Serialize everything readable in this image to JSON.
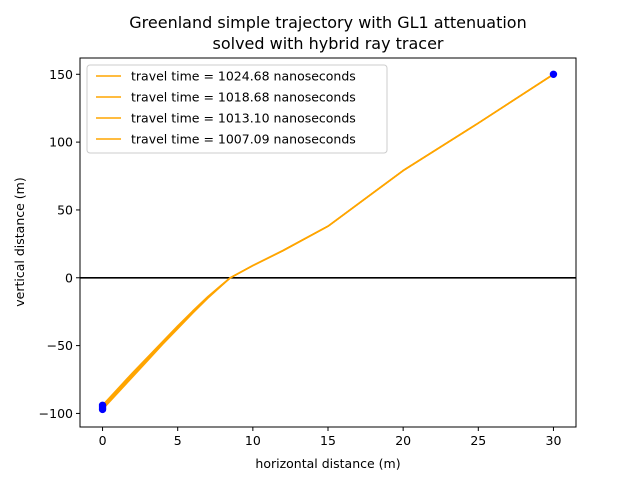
{
  "chart_data": {
    "type": "line",
    "title": [
      "Greenland simple trajectory with GL1 attenuation",
      "solved with hybrid ray tracer"
    ],
    "xlabel": "horizontal distance (m)",
    "ylabel": "vertical distance (m)",
    "xlim": [
      -1.5,
      31.5
    ],
    "ylim": [
      -110,
      162
    ],
    "xticks": [
      0,
      5,
      10,
      15,
      20,
      25,
      30
    ],
    "yticks": [
      -100,
      -50,
      0,
      50,
      100,
      150
    ],
    "grid": false,
    "legend_position": "upper-left",
    "horizontal_line": {
      "y": 0,
      "color": "#000000"
    },
    "series": [
      {
        "name": "travel time = 1024.68 nanoseconds",
        "color": "#ffa500",
        "x": [
          0,
          1,
          2,
          3,
          4,
          5,
          6,
          7,
          7.8,
          8.5,
          10,
          12,
          15,
          20,
          25,
          30
        ],
        "y": [
          -97,
          -85,
          -73,
          -61,
          -49,
          -37.5,
          -26,
          -15,
          -7,
          0,
          9,
          20,
          38,
          79,
          114,
          150
        ]
      },
      {
        "name": "travel time = 1018.68 nanoseconds",
        "color": "#ffa500",
        "x": [
          0,
          1,
          2,
          3,
          4,
          5,
          6,
          7,
          7.8,
          8.5,
          10,
          12,
          15,
          20,
          25,
          30
        ],
        "y": [
          -96,
          -84,
          -72,
          -60,
          -48.5,
          -37,
          -25.5,
          -14.7,
          -6.8,
          0,
          9,
          20,
          38,
          79,
          114,
          150
        ]
      },
      {
        "name": "travel time = 1013.10 nanoseconds",
        "color": "#ffa500",
        "x": [
          0,
          1,
          2,
          3,
          4,
          5,
          6,
          7,
          7.8,
          8.5,
          10,
          12,
          15,
          20,
          25,
          30
        ],
        "y": [
          -95,
          -83,
          -71,
          -59.5,
          -48,
          -36.5,
          -25,
          -14.4,
          -6.6,
          0,
          9,
          20,
          38,
          79,
          114,
          150
        ]
      },
      {
        "name": "travel time = 1007.09 nanoseconds",
        "color": "#ffa500",
        "x": [
          0,
          1,
          2,
          3,
          4,
          5,
          6,
          7,
          7.8,
          8.5,
          10,
          12,
          15,
          20,
          25,
          30
        ],
        "y": [
          -94,
          -82,
          -70,
          -58.5,
          -47,
          -35.5,
          -24.5,
          -14,
          -6.4,
          0,
          9,
          20,
          38,
          79,
          114,
          150
        ]
      }
    ],
    "points": [
      {
        "x": 0,
        "y": -97,
        "color": "#0000ff"
      },
      {
        "x": 0,
        "y": -96,
        "color": "#0000ff"
      },
      {
        "x": 0,
        "y": -95,
        "color": "#0000ff"
      },
      {
        "x": 0,
        "y": -94,
        "color": "#0000ff"
      },
      {
        "x": 30,
        "y": 150,
        "color": "#0000ff"
      }
    ]
  }
}
